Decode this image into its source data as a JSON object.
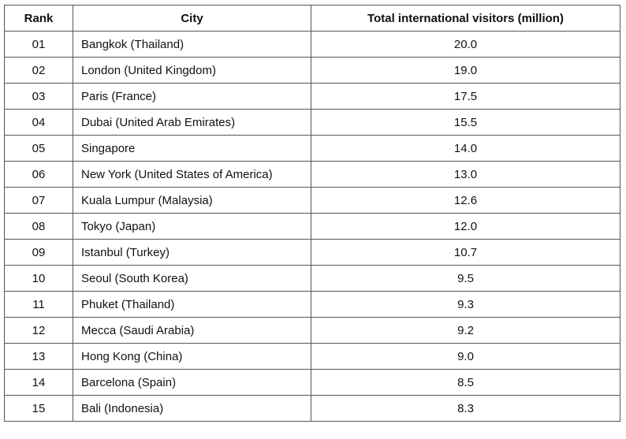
{
  "table": {
    "headers": {
      "rank": "Rank",
      "city": "City",
      "visitors": "Total international visitors (million)"
    },
    "rows": [
      {
        "rank": "01",
        "city": "Bangkok (Thailand)",
        "visitors": "20.0"
      },
      {
        "rank": "02",
        "city": "London (United Kingdom)",
        "visitors": "19.0"
      },
      {
        "rank": "03",
        "city": "Paris (France)",
        "visitors": "17.5"
      },
      {
        "rank": "04",
        "city": "Dubai (United Arab Emirates)",
        "visitors": "15.5"
      },
      {
        "rank": "05",
        "city": "Singapore",
        "visitors": "14.0"
      },
      {
        "rank": "06",
        "city": "New York (United States of America)",
        "visitors": "13.0"
      },
      {
        "rank": "07",
        "city": "Kuala Lumpur (Malaysia)",
        "visitors": "12.6"
      },
      {
        "rank": "08",
        "city": "Tokyo (Japan)",
        "visitors": "12.0"
      },
      {
        "rank": "09",
        "city": "Istanbul (Turkey)",
        "visitors": "10.7"
      },
      {
        "rank": "10",
        "city": "Seoul (South Korea)",
        "visitors": "9.5"
      },
      {
        "rank": "11",
        "city": "Phuket (Thailand)",
        "visitors": "9.3"
      },
      {
        "rank": "12",
        "city": "Mecca (Saudi Arabia)",
        "visitors": "9.2"
      },
      {
        "rank": "13",
        "city": "Hong Kong (China)",
        "visitors": "9.0"
      },
      {
        "rank": "14",
        "city": "Barcelona (Spain)",
        "visitors": "8.5"
      },
      {
        "rank": "15",
        "city": "Bali (Indonesia)",
        "visitors": "8.3"
      }
    ]
  }
}
